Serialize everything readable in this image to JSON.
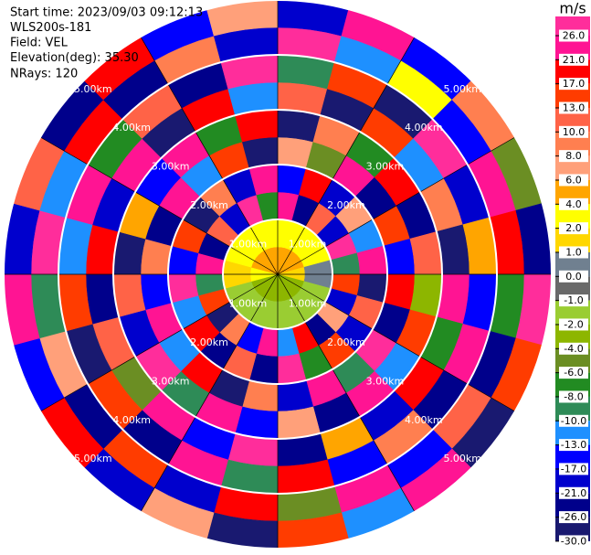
{
  "chart_data": {
    "type": "ppi",
    "info": [
      "Start time: 2023/09/03 09:12:13",
      "WLS200s-181",
      "Field: VEL",
      "Elevation(deg): 35.30",
      "NRays: 120"
    ],
    "colorbar_title": "m/s",
    "levels": [
      {
        "value": 26,
        "label": "26.0"
      },
      {
        "value": 21,
        "label": "21.0"
      },
      {
        "value": 17,
        "label": "17.0"
      },
      {
        "value": 13,
        "label": "13.0"
      },
      {
        "value": 10,
        "label": "10.0"
      },
      {
        "value": 8,
        "label": "8.0"
      },
      {
        "value": 6,
        "label": "6.0"
      },
      {
        "value": 4,
        "label": "4.0"
      },
      {
        "value": 2,
        "label": "2.0"
      },
      {
        "value": 1,
        "label": "1.0"
      },
      {
        "value": 0,
        "label": "0.0"
      },
      {
        "value": -1,
        "label": "-1.0"
      },
      {
        "value": -2,
        "label": "-2.0"
      },
      {
        "value": -4,
        "label": "-4.0"
      },
      {
        "value": -6,
        "label": "-6.0"
      },
      {
        "value": -8,
        "label": "-8.0"
      },
      {
        "value": -10,
        "label": "-10.0"
      },
      {
        "value": -13,
        "label": "-13.0"
      },
      {
        "value": -17,
        "label": "-17.0"
      },
      {
        "value": -21,
        "label": "-21.0"
      },
      {
        "value": -26,
        "label": "-26.0"
      },
      {
        "value": -30,
        "label": "-30.0"
      }
    ],
    "colors": [
      "#ff2d9b",
      "#ff1493",
      "#ff0000",
      "#ff3c00",
      "#ff6347",
      "#ff7f50",
      "#ffa07a",
      "#ffa500",
      "#ffff00",
      "#ffd700",
      "#708090",
      "#696969",
      "#9acd32",
      "#8db600",
      "#6b8e23",
      "#228b22",
      "#2e8b57",
      "#1e90ff",
      "#0000ff",
      "#0000cd",
      "#00008b",
      "#191970"
    ],
    "rings": [
      {
        "value": 1,
        "label": "1.00km"
      },
      {
        "value": 2,
        "label": "2.00km"
      },
      {
        "value": 3,
        "label": "3.00km"
      },
      {
        "value": 4,
        "label": "4.00km"
      },
      {
        "value": 5,
        "label": "5.00km"
      }
    ],
    "gates_km": [
      0,
      0.5,
      1.0,
      1.5,
      2.0,
      2.5,
      3.0,
      3.5,
      4.0,
      4.5,
      5.0
    ],
    "azimuths": [
      0,
      15,
      30,
      45,
      60,
      75,
      90,
      105,
      120,
      135,
      150,
      165,
      180,
      195,
      210,
      225,
      240,
      255,
      270,
      285,
      300,
      315,
      330,
      345
    ],
    "values": [
      [
        5,
        3,
        22,
        -15,
        7,
        -28,
        12,
        -9,
        27,
        -19
      ],
      [
        5,
        3,
        -24,
        18,
        -5,
        9,
        -27,
        14,
        -12,
        23
      ],
      [
        5,
        3,
        11,
        -20,
        25,
        -7,
        16,
        -29,
        3,
        -14
      ],
      [
        5,
        3,
        -18,
        6,
        -23,
        20,
        -11,
        28,
        -16,
        9
      ],
      [
        5,
        3,
        27,
        -12,
        15,
        -25,
        8,
        -19,
        22,
        -6
      ],
      [
        1,
        0.5,
        -9,
        24,
        -17,
        12,
        -28,
        5,
        17,
        -22
      ],
      [
        1,
        0.5,
        14,
        -27,
        19,
        -3,
        23,
        -14,
        -8,
        26
      ],
      [
        -3,
        -2,
        -21,
        10,
        -26,
        16,
        -7,
        21,
        -24,
        13
      ],
      [
        -3,
        -2,
        7,
        -18,
        28,
        -13,
        19,
        -23,
        11,
        -29
      ],
      [
        -3,
        -2,
        -26,
        15,
        -10,
        24,
        -20,
        9,
        -15,
        21
      ],
      [
        -3,
        -2,
        19,
        -8,
        22,
        -24,
        4,
        -17,
        25,
        -11
      ],
      [
        -3,
        -2,
        -13,
        26,
        -20,
        7,
        -25,
        18,
        -5,
        15
      ],
      [
        -3,
        -2,
        24,
        -22,
        9,
        -16,
        27,
        -10,
        20,
        -27
      ],
      [
        -3,
        -2,
        -16,
        12,
        -28,
        21,
        -14,
        25,
        -21,
        6
      ],
      [
        -3,
        -2,
        9,
        -25,
        17,
        -9,
        22,
        -26,
        14,
        -18
      ],
      [
        -3,
        -2,
        -27,
        20,
        -13,
        26,
        -6,
        13,
        -23,
        18
      ],
      [
        -3,
        -2,
        16,
        -11,
        24,
        -21,
        10,
        -28,
        6,
        -15
      ],
      [
        2,
        1,
        -10,
        27,
        -16,
        11,
        -22,
        16,
        -9,
        25
      ],
      [
        2,
        1,
        21,
        -17,
        8,
        -27,
        18,
        -12,
        28,
        -20
      ],
      [
        5,
        3,
        -23,
        13,
        -24,
        5,
        -19,
        23,
        -13,
        10
      ],
      [
        5,
        3,
        12,
        -28,
        21,
        -15,
        25,
        -7,
        17,
        -25
      ],
      [
        5,
        3,
        -19,
        8,
        -11,
        23,
        -29,
        11,
        -26,
        19
      ],
      [
        5,
        3,
        26,
        -21,
        14,
        -8,
        20,
        -24,
        9,
        -16
      ],
      [
        5,
        3,
        -8,
        23,
        -27,
        18,
        -12,
        27,
        -18,
        7
      ]
    ]
  }
}
